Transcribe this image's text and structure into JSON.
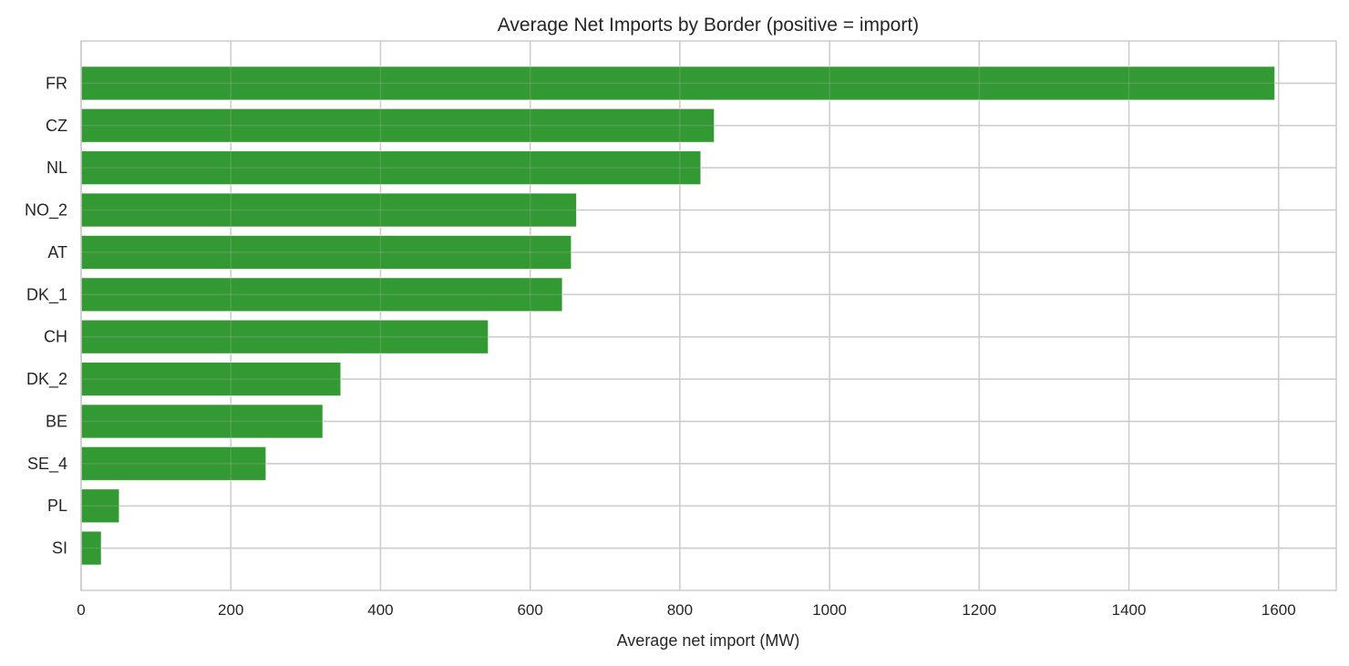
{
  "chart_data": {
    "type": "bar",
    "orientation": "horizontal",
    "title": "Average Net Imports by Border (positive = import)",
    "xlabel": "Average net import (MW)",
    "ylabel": "",
    "categories": [
      "FR",
      "CZ",
      "NL",
      "NO_2",
      "AT",
      "DK_1",
      "CH",
      "DK_2",
      "BE",
      "SE_4",
      "PL",
      "SI"
    ],
    "values": [
      1595,
      846,
      828,
      662,
      655,
      643,
      544,
      347,
      323,
      247,
      51,
      27
    ],
    "xlim": [
      0,
      1677
    ],
    "xticks": [
      0,
      200,
      400,
      600,
      800,
      1000,
      1200,
      1400,
      1600
    ],
    "grid": true,
    "bar_color": "#008000",
    "bar_alpha": 0.8
  }
}
